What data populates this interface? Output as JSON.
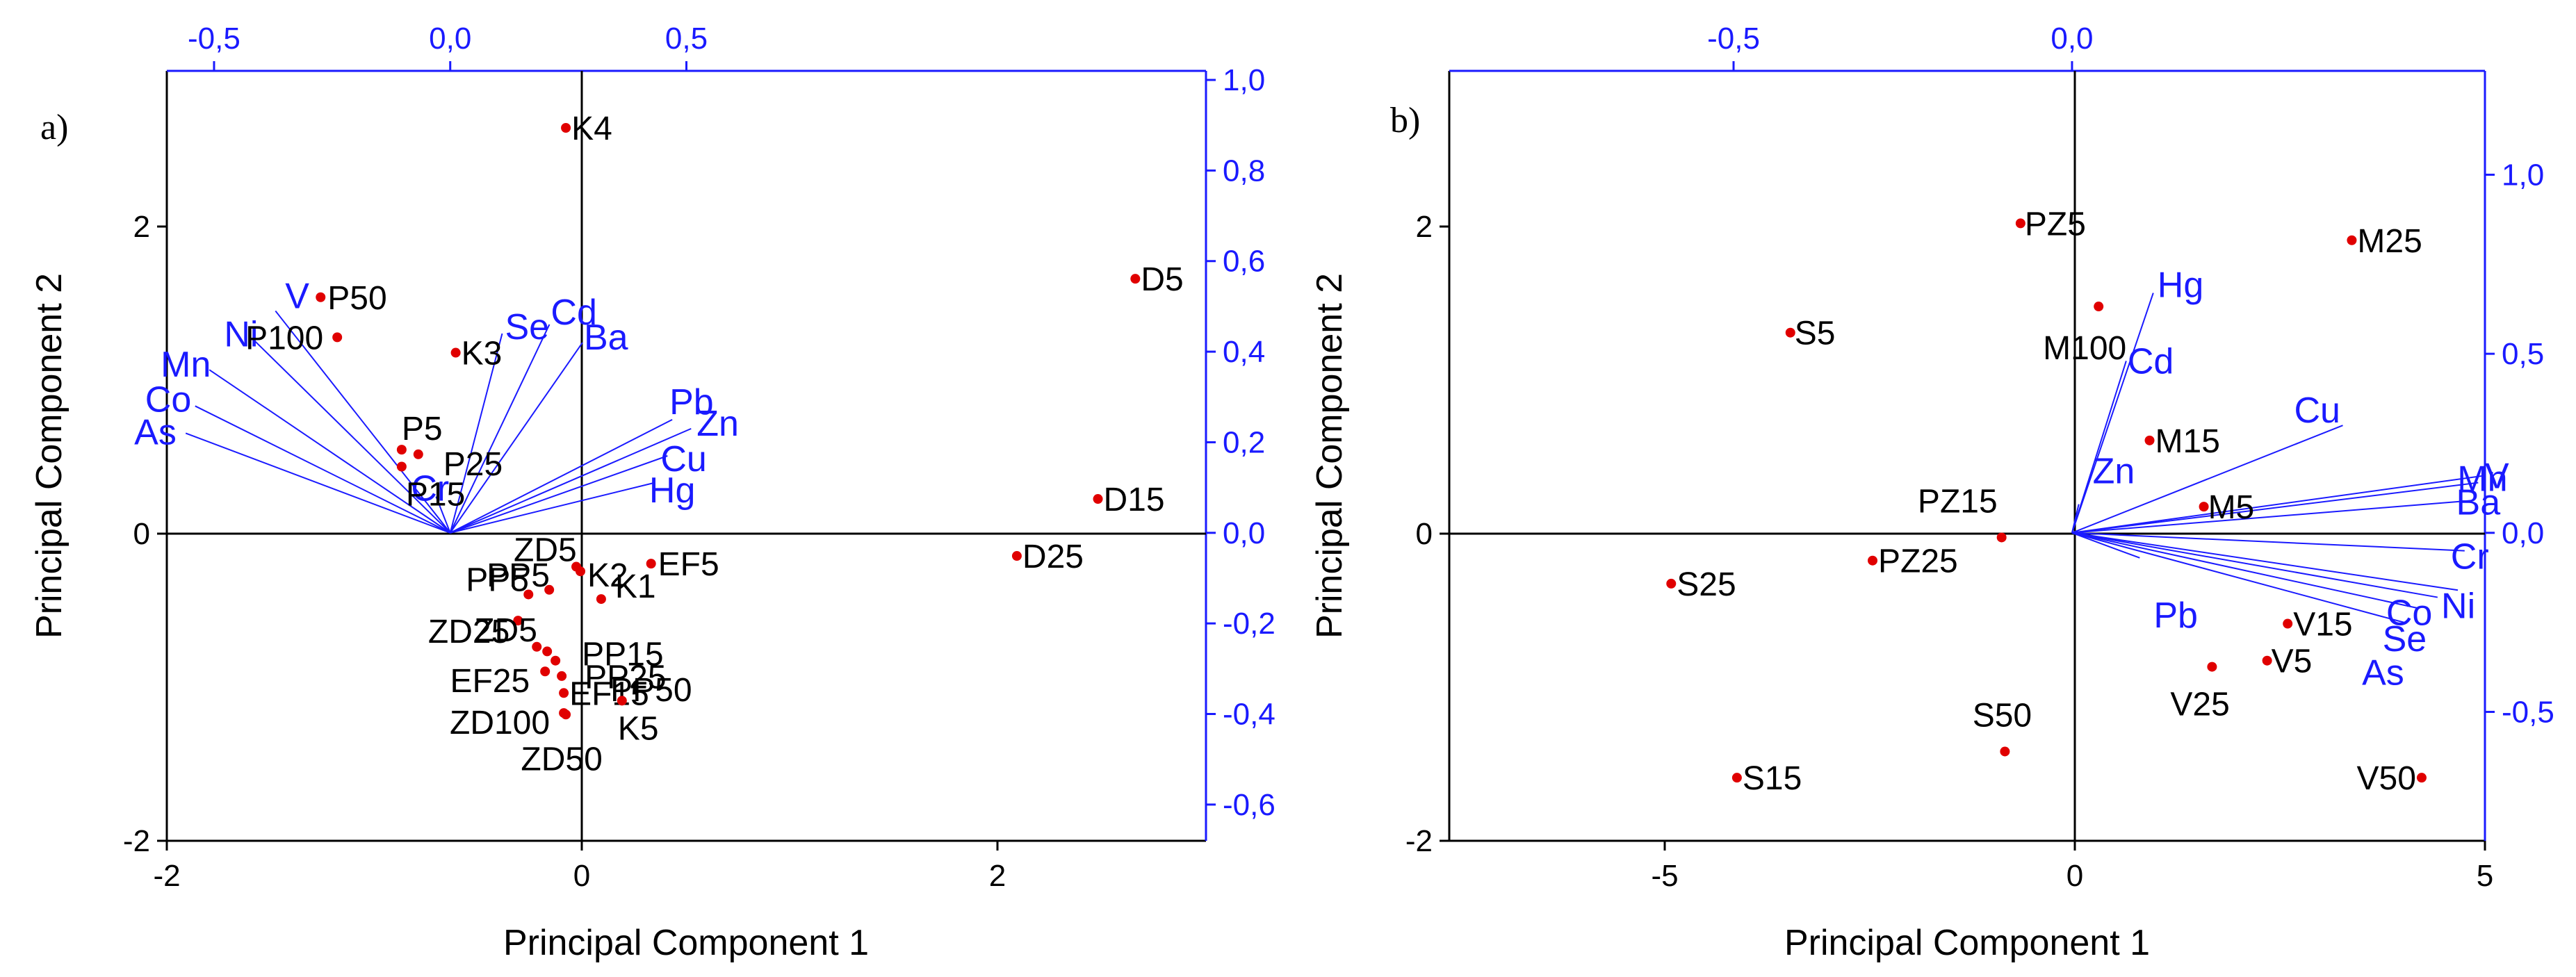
{
  "chart_data": [
    {
      "type": "scatter",
      "panel_label": "a)",
      "xlabel": "Principal Component 1",
      "ylabel": "Principal Component 2",
      "xlim": [
        -2,
        3
      ],
      "ylim": [
        -2,
        3
      ],
      "xticks": [
        {
          "v": -2,
          "label": "-2"
        },
        {
          "v": 0,
          "label": "0"
        },
        {
          "v": 2,
          "label": "2"
        }
      ],
      "yticks": [
        {
          "v": -2,
          "label": "-2"
        },
        {
          "v": 0,
          "label": "0"
        },
        {
          "v": 2,
          "label": "2"
        }
      ],
      "loadings_xlim": [
        -0.6,
        1.6
      ],
      "loadings_ylim": [
        -0.68,
        1.02
      ],
      "top_ticks": [
        {
          "v": -0.5,
          "label": "-0,5"
        },
        {
          "v": 0.0,
          "label": "0,0"
        },
        {
          "v": 0.5,
          "label": "0,5"
        }
      ],
      "right_ticks": [
        {
          "v": 1.0,
          "label": "1,0"
        },
        {
          "v": 0.8,
          "label": "0,8"
        },
        {
          "v": 0.6,
          "label": "0,6"
        },
        {
          "v": 0.4,
          "label": "0,4"
        },
        {
          "v": 0.2,
          "label": "0,2"
        },
        {
          "v": 0.0,
          "label": "0,0"
        },
        {
          "v": -0.2,
          "label": "-0,2"
        },
        {
          "v": -0.4,
          "label": "-0,4"
        },
        {
          "v": -0.6,
          "label": "-0,6"
        }
      ],
      "scores": [
        {
          "label": "K4",
          "x": -0.08,
          "y": 2.63
        },
        {
          "label": "P50",
          "x": -1.26,
          "y": 1.53
        },
        {
          "label": "P100",
          "x": -1.18,
          "y": 1.27
        },
        {
          "label": "K3",
          "x": -0.61,
          "y": 1.17
        },
        {
          "label": "P5",
          "x": -0.87,
          "y": 0.54
        },
        {
          "label": "P25",
          "x": -0.79,
          "y": 0.51
        },
        {
          "label": "P15",
          "x": -0.87,
          "y": 0.43
        },
        {
          "label": "D5",
          "x": 2.66,
          "y": 1.65
        },
        {
          "label": "D15",
          "x": 2.48,
          "y": 0.22
        },
        {
          "label": "D25",
          "x": 2.09,
          "y": -0.15
        },
        {
          "label": "ZD5",
          "x": -0.03,
          "y": -0.22
        },
        {
          "label": "K2",
          "x": -0.01,
          "y": -0.25
        },
        {
          "label": "EF5",
          "x": 0.33,
          "y": -0.2
        },
        {
          "label": "PP5",
          "x": -0.16,
          "y": -0.37
        },
        {
          "label": "PP5",
          "x": -0.26,
          "y": -0.4
        },
        {
          "label": "K1",
          "x": 0.09,
          "y": -0.43
        },
        {
          "label": "ZD25",
          "x": -0.31,
          "y": -0.57
        },
        {
          "label": "ZD5",
          "x": -0.22,
          "y": -0.74
        },
        {
          "label": "PP15",
          "x": -0.17,
          "y": -0.77
        },
        {
          "label": "PP25",
          "x": -0.13,
          "y": -0.83
        },
        {
          "label": "EF25",
          "x": -0.18,
          "y": -0.9
        },
        {
          "label": "PP50",
          "x": -0.1,
          "y": -0.93
        },
        {
          "label": "EF15",
          "x": -0.09,
          "y": -1.04
        },
        {
          "label": "K5",
          "x": 0.19,
          "y": -1.09
        },
        {
          "label": "ZD100",
          "x": -0.09,
          "y": -1.17
        },
        {
          "label": "ZD50",
          "x": -0.08,
          "y": -1.18
        }
      ],
      "loadings": [
        {
          "label": "V",
          "x": -0.37,
          "y": 0.49
        },
        {
          "label": "Ni",
          "x": -0.42,
          "y": 0.43
        },
        {
          "label": "Mn",
          "x": -0.51,
          "y": 0.36
        },
        {
          "label": "Co",
          "x": -0.54,
          "y": 0.28
        },
        {
          "label": "As",
          "x": -0.56,
          "y": 0.22
        },
        {
          "label": "Cr",
          "x": -0.03,
          "y": 0.08
        },
        {
          "label": "Se",
          "x": 0.11,
          "y": 0.44
        },
        {
          "label": "Cd",
          "x": 0.21,
          "y": 0.46
        },
        {
          "label": "Ba",
          "x": 0.28,
          "y": 0.42
        },
        {
          "label": "Pb",
          "x": 0.47,
          "y": 0.25
        },
        {
          "label": "Zn",
          "x": 0.51,
          "y": 0.23
        },
        {
          "label": "Cu",
          "x": 0.46,
          "y": 0.17
        },
        {
          "label": "Hg",
          "x": 0.43,
          "y": 0.11
        }
      ]
    },
    {
      "type": "scatter",
      "panel_label": "b)",
      "xlabel": "Principal Component 1",
      "ylabel": "Principal Component 2",
      "xlim": [
        -7.6,
        5
      ],
      "ylim": [
        -2,
        3
      ],
      "xticks": [
        {
          "v": -5,
          "label": "-5"
        },
        {
          "v": 0,
          "label": "0"
        },
        {
          "v": 5,
          "label": "5"
        }
      ],
      "yticks": [
        {
          "v": -2,
          "label": "-2"
        },
        {
          "v": 0,
          "label": "0"
        },
        {
          "v": 2,
          "label": "2"
        }
      ],
      "loadings_xlim": [
        -0.92,
        0.61
      ],
      "loadings_ylim": [
        -0.86,
        1.29
      ],
      "top_ticks": [
        {
          "v": -0.5,
          "label": "-0,5"
        },
        {
          "v": 0.0,
          "label": "0,0"
        }
      ],
      "right_ticks": [
        {
          "v": 1.0,
          "label": "1,0"
        },
        {
          "v": 0.5,
          "label": "0,5"
        },
        {
          "v": 0.0,
          "label": "0,0"
        },
        {
          "v": -0.5,
          "label": "-0,5"
        }
      ],
      "scores": [
        {
          "label": "PZ5",
          "x": -0.65,
          "y": 2.01
        },
        {
          "label": "M25",
          "x": 3.38,
          "y": 1.9
        },
        {
          "label": "S5",
          "x": -3.45,
          "y": 1.3
        },
        {
          "label": "M100",
          "x": 0.3,
          "y": 1.47
        },
        {
          "label": "M15",
          "x": 0.92,
          "y": 0.6
        },
        {
          "label": "PZ15",
          "x": -0.88,
          "y": -0.03
        },
        {
          "label": "M5",
          "x": 1.58,
          "y": 0.17
        },
        {
          "label": "S25",
          "x": -4.9,
          "y": -0.33
        },
        {
          "label": "PZ25",
          "x": -2.45,
          "y": -0.18
        },
        {
          "label": "V15",
          "x": 2.6,
          "y": -0.59
        },
        {
          "label": "V5",
          "x": 2.35,
          "y": -0.83
        },
        {
          "label": "V25",
          "x": 1.68,
          "y": -0.87
        },
        {
          "label": "S50",
          "x": -0.84,
          "y": -1.42
        },
        {
          "label": "S15",
          "x": -4.1,
          "y": -1.59
        },
        {
          "label": "V50",
          "x": 4.23,
          "y": -1.59
        }
      ],
      "loadings": [
        {
          "label": "Hg",
          "x": 0.12,
          "y": 0.67
        },
        {
          "label": "Cd",
          "x": 0.08,
          "y": 0.48
        },
        {
          "label": "Zn",
          "x": 0.01,
          "y": 0.08
        },
        {
          "label": "Cu",
          "x": 0.4,
          "y": 0.3
        },
        {
          "label": "V",
          "x": 0.61,
          "y": 0.16
        },
        {
          "label": "Mn",
          "x": 0.6,
          "y": 0.14
        },
        {
          "label": "Ba",
          "x": 0.59,
          "y": 0.09
        },
        {
          "label": "Cr",
          "x": 0.58,
          "y": -0.05
        },
        {
          "label": "Ni",
          "x": 0.57,
          "y": -0.16
        },
        {
          "label": "Co",
          "x": 0.54,
          "y": -0.18
        },
        {
          "label": "Se",
          "x": 0.51,
          "y": -0.21
        },
        {
          "label": "As",
          "x": 0.49,
          "y": -0.25
        },
        {
          "label": "Pb",
          "x": 0.1,
          "y": -0.07
        }
      ]
    }
  ]
}
